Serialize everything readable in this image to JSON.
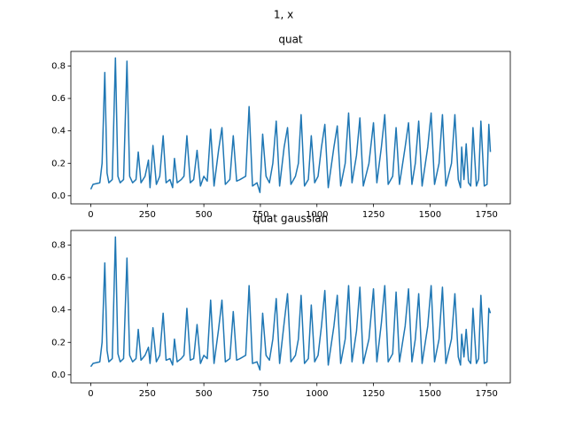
{
  "suptitle": "1, x",
  "chart_data": [
    {
      "type": "line",
      "title": "quat",
      "x": [
        0,
        10,
        40,
        50,
        62,
        72,
        80,
        95,
        109,
        120,
        130,
        145,
        160,
        172,
        185,
        200,
        210,
        222,
        240,
        255,
        262,
        275,
        290,
        305,
        320,
        333,
        350,
        362,
        370,
        382,
        400,
        412,
        425,
        440,
        455,
        470,
        485,
        500,
        515,
        530,
        545,
        565,
        580,
        595,
        615,
        630,
        645,
        660,
        685,
        700,
        715,
        735,
        748,
        760,
        775,
        790,
        805,
        820,
        835,
        855,
        870,
        885,
        905,
        918,
        930,
        945,
        962,
        975,
        990,
        1005,
        1020,
        1035,
        1050,
        1075,
        1090,
        1105,
        1125,
        1140,
        1155,
        1175,
        1190,
        1205,
        1230,
        1250,
        1265,
        1285,
        1300,
        1315,
        1335,
        1350,
        1365,
        1390,
        1405,
        1420,
        1435,
        1450,
        1465,
        1490,
        1505,
        1520,
        1540,
        1555,
        1570,
        1595,
        1610,
        1625,
        1635,
        1640,
        1650,
        1660,
        1670,
        1680,
        1690,
        1705,
        1715,
        1725,
        1740,
        1752,
        1760,
        1767
      ],
      "series": [
        {
          "color": "#1f77b4",
          "values": [
            0.04,
            0.07,
            0.08,
            0.2,
            0.76,
            0.14,
            0.08,
            0.1,
            0.85,
            0.12,
            0.08,
            0.1,
            0.83,
            0.12,
            0.08,
            0.1,
            0.27,
            0.08,
            0.12,
            0.22,
            0.05,
            0.31,
            0.07,
            0.12,
            0.37,
            0.08,
            0.1,
            0.05,
            0.23,
            0.08,
            0.1,
            0.12,
            0.37,
            0.08,
            0.1,
            0.28,
            0.06,
            0.12,
            0.09,
            0.41,
            0.06,
            0.28,
            0.42,
            0.07,
            0.1,
            0.37,
            0.09,
            0.1,
            0.12,
            0.55,
            0.06,
            0.08,
            0.02,
            0.38,
            0.12,
            0.08,
            0.2,
            0.46,
            0.06,
            0.3,
            0.42,
            0.07,
            0.12,
            0.2,
            0.5,
            0.06,
            0.1,
            0.37,
            0.08,
            0.12,
            0.3,
            0.44,
            0.05,
            0.3,
            0.43,
            0.06,
            0.2,
            0.51,
            0.08,
            0.25,
            0.48,
            0.06,
            0.2,
            0.45,
            0.08,
            0.3,
            0.5,
            0.07,
            0.12,
            0.42,
            0.07,
            0.3,
            0.45,
            0.07,
            0.2,
            0.46,
            0.06,
            0.3,
            0.51,
            0.07,
            0.2,
            0.5,
            0.06,
            0.2,
            0.5,
            0.1,
            0.05,
            0.3,
            0.1,
            0.32,
            0.08,
            0.06,
            0.42,
            0.06,
            0.1,
            0.46,
            0.06,
            0.07,
            0.44,
            0.27
          ]
        }
      ],
      "xlim": [
        -88,
        1855
      ],
      "ylim": [
        -0.05,
        0.89
      ],
      "xticks": [
        0,
        250,
        500,
        750,
        1000,
        1250,
        1500,
        1750
      ],
      "yticks": [
        {
          "value": 0,
          "label": "0.0"
        },
        0.2,
        0.4,
        0.6,
        0.8
      ]
    },
    {
      "type": "line",
      "title": "quat gaussian",
      "x": [
        0,
        10,
        40,
        50,
        62,
        72,
        80,
        95,
        109,
        120,
        130,
        145,
        160,
        172,
        185,
        200,
        210,
        222,
        240,
        255,
        262,
        275,
        290,
        305,
        320,
        333,
        350,
        362,
        370,
        382,
        400,
        412,
        425,
        440,
        455,
        470,
        485,
        500,
        515,
        530,
        545,
        565,
        580,
        595,
        615,
        630,
        645,
        660,
        685,
        700,
        715,
        735,
        748,
        760,
        775,
        790,
        805,
        820,
        835,
        855,
        870,
        885,
        905,
        918,
        930,
        945,
        962,
        975,
        990,
        1005,
        1020,
        1035,
        1050,
        1075,
        1090,
        1105,
        1125,
        1140,
        1155,
        1175,
        1190,
        1205,
        1230,
        1250,
        1265,
        1285,
        1300,
        1315,
        1335,
        1350,
        1365,
        1390,
        1405,
        1420,
        1435,
        1450,
        1465,
        1490,
        1505,
        1520,
        1540,
        1555,
        1570,
        1595,
        1610,
        1625,
        1635,
        1640,
        1650,
        1660,
        1670,
        1680,
        1690,
        1705,
        1715,
        1725,
        1740,
        1752,
        1760,
        1767
      ],
      "series": [
        {
          "color": "#1f77b4",
          "values": [
            0.05,
            0.07,
            0.08,
            0.2,
            0.69,
            0.15,
            0.08,
            0.1,
            0.85,
            0.13,
            0.08,
            0.1,
            0.72,
            0.12,
            0.08,
            0.1,
            0.28,
            0.09,
            0.12,
            0.17,
            0.07,
            0.29,
            0.08,
            0.12,
            0.38,
            0.09,
            0.1,
            0.06,
            0.22,
            0.08,
            0.1,
            0.12,
            0.41,
            0.09,
            0.1,
            0.31,
            0.07,
            0.12,
            0.1,
            0.46,
            0.07,
            0.28,
            0.46,
            0.08,
            0.1,
            0.39,
            0.09,
            0.1,
            0.12,
            0.55,
            0.07,
            0.08,
            0.03,
            0.38,
            0.12,
            0.09,
            0.22,
            0.47,
            0.07,
            0.32,
            0.5,
            0.08,
            0.12,
            0.22,
            0.49,
            0.07,
            0.1,
            0.43,
            0.08,
            0.12,
            0.3,
            0.52,
            0.06,
            0.3,
            0.49,
            0.07,
            0.22,
            0.55,
            0.08,
            0.27,
            0.54,
            0.07,
            0.22,
            0.53,
            0.08,
            0.32,
            0.55,
            0.08,
            0.13,
            0.51,
            0.08,
            0.3,
            0.53,
            0.08,
            0.22,
            0.5,
            0.07,
            0.3,
            0.55,
            0.08,
            0.22,
            0.54,
            0.07,
            0.22,
            0.5,
            0.11,
            0.06,
            0.25,
            0.11,
            0.28,
            0.09,
            0.07,
            0.41,
            0.07,
            0.1,
            0.49,
            0.07,
            0.08,
            0.41,
            0.38
          ]
        }
      ],
      "xlim": [
        -88,
        1855
      ],
      "ylim": [
        -0.05,
        0.89
      ],
      "xticks": [
        0,
        250,
        500,
        750,
        1000,
        1250,
        1500,
        1750
      ],
      "yticks": [
        {
          "value": 0,
          "label": "0.0"
        },
        0.2,
        0.4,
        0.6,
        0.8
      ]
    }
  ]
}
